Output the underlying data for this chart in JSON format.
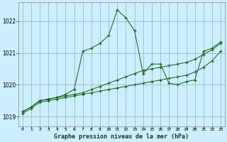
{
  "title": "Graphe pression niveau de la mer (hPa)",
  "bg_color": "#cceeff",
  "grid_color": "#99bbcc",
  "line_color": "#1a6b1a",
  "xlim": [
    -0.5,
    23.5
  ],
  "ylim": [
    1018.7,
    1022.6
  ],
  "yticks": [
    1019,
    1020,
    1021,
    1022
  ],
  "xticks": [
    0,
    1,
    2,
    3,
    4,
    5,
    6,
    7,
    8,
    9,
    10,
    11,
    12,
    13,
    14,
    15,
    16,
    17,
    18,
    19,
    20,
    21,
    22,
    23
  ],
  "series1": {
    "x": [
      0,
      1,
      2,
      3,
      4,
      5,
      6,
      7,
      8,
      9,
      10,
      11,
      12,
      13,
      14,
      15,
      16,
      17,
      18,
      19,
      20,
      21,
      22,
      23
    ],
    "y": [
      1019.1,
      1019.25,
      1019.45,
      1019.5,
      1019.55,
      1019.6,
      1019.65,
      1019.7,
      1019.75,
      1019.8,
      1019.85,
      1019.9,
      1019.95,
      1020.0,
      1020.05,
      1020.1,
      1020.15,
      1020.2,
      1020.25,
      1020.3,
      1020.4,
      1020.55,
      1020.75,
      1021.05
    ]
  },
  "series2": {
    "x": [
      0,
      1,
      2,
      3,
      4,
      5,
      6,
      7,
      8,
      9,
      10,
      11,
      12,
      13,
      14,
      15,
      16,
      17,
      18,
      19,
      20,
      21,
      22,
      23
    ],
    "y": [
      1019.15,
      1019.3,
      1019.5,
      1019.55,
      1019.6,
      1019.65,
      1019.7,
      1019.75,
      1019.85,
      1019.95,
      1020.05,
      1020.15,
      1020.25,
      1020.35,
      1020.45,
      1020.5,
      1020.55,
      1020.6,
      1020.65,
      1020.7,
      1020.8,
      1020.95,
      1021.1,
      1021.3
    ]
  },
  "series3": {
    "x": [
      0,
      1,
      2,
      3,
      4,
      5,
      6,
      7,
      8,
      9,
      10,
      11,
      12,
      13,
      14,
      15,
      16,
      17,
      18,
      19,
      20,
      21,
      22,
      23
    ],
    "y": [
      1019.15,
      1019.3,
      1019.5,
      1019.55,
      1019.6,
      1019.7,
      1019.85,
      1021.05,
      1021.15,
      1021.3,
      1021.55,
      1022.35,
      1022.1,
      1021.7,
      1020.35,
      1020.65,
      1020.65,
      1020.05,
      1020.0,
      1020.1,
      1020.15,
      1021.05,
      1021.15,
      1021.35
    ]
  }
}
